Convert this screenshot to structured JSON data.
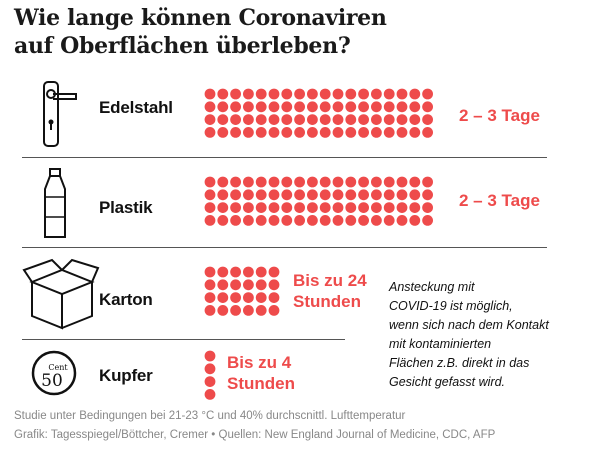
{
  "colors": {
    "accent": "#ee4b4b",
    "text": "#111111",
    "footer": "#888888"
  },
  "chart_data": {
    "type": "icon-array",
    "title": "Wie lange können Coronaviren\nauf Oberflächen überleben?",
    "unit": "Stunden (1 Punkt = 1 Stunde)",
    "categories": [
      "Edelstahl",
      "Plastik",
      "Karton",
      "Kupfer"
    ],
    "values": [
      72,
      72,
      24,
      4
    ],
    "value_labels": [
      "2 – 3 Tage",
      "2 – 3 Tage",
      "Bis zu 24\nStunden",
      "Bis zu 4\nStunden"
    ],
    "icons": [
      "door-handle-icon",
      "plastic-bottle-icon",
      "cardboard-box-icon",
      "coin-icon"
    ]
  },
  "coin_text": {
    "numeral": "50",
    "word": "Cent"
  },
  "note": "Ansteckung mit\nCOVID-19 ist möglich,\nwenn sich nach dem Kontakt\nmit kontaminierten\nFlächen z.B. direkt in das\nGesicht gefasst wird.",
  "footer": {
    "line1": "Studie unter Bedingungen bei 21-23 °C und 40% durchscnittl. Lufttemperatur",
    "line2": "Grafik: Tagesspiegel/Böttcher, Cremer • Quellen: New England Journal of Medicine, CDC, AFP"
  }
}
